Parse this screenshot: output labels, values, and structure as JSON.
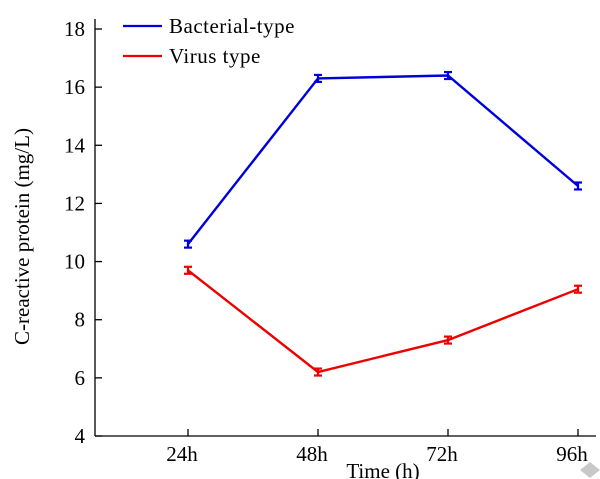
{
  "chart_data": {
    "type": "line",
    "categories": [
      "24h",
      "48h",
      "72h",
      "96h"
    ],
    "series": [
      {
        "name": "Bacterial-type",
        "color": "#0000dd",
        "values": [
          10.6,
          16.3,
          16.4,
          12.6
        ],
        "errors": [
          0.12,
          0.12,
          0.12,
          0.12
        ]
      },
      {
        "name": "Virus type",
        "color": "#ee0000",
        "values": [
          9.7,
          6.2,
          7.3,
          9.05
        ],
        "errors": [
          0.12,
          0.12,
          0.12,
          0.12
        ]
      }
    ],
    "xlabel": "Time (h)",
    "ylabel": "C-reactive protein (mg/L)",
    "ylim": [
      4,
      18
    ],
    "yticks": [
      4,
      6,
      8,
      10,
      12,
      14,
      16,
      18
    ],
    "grid": false,
    "legend_position": "top-left"
  }
}
